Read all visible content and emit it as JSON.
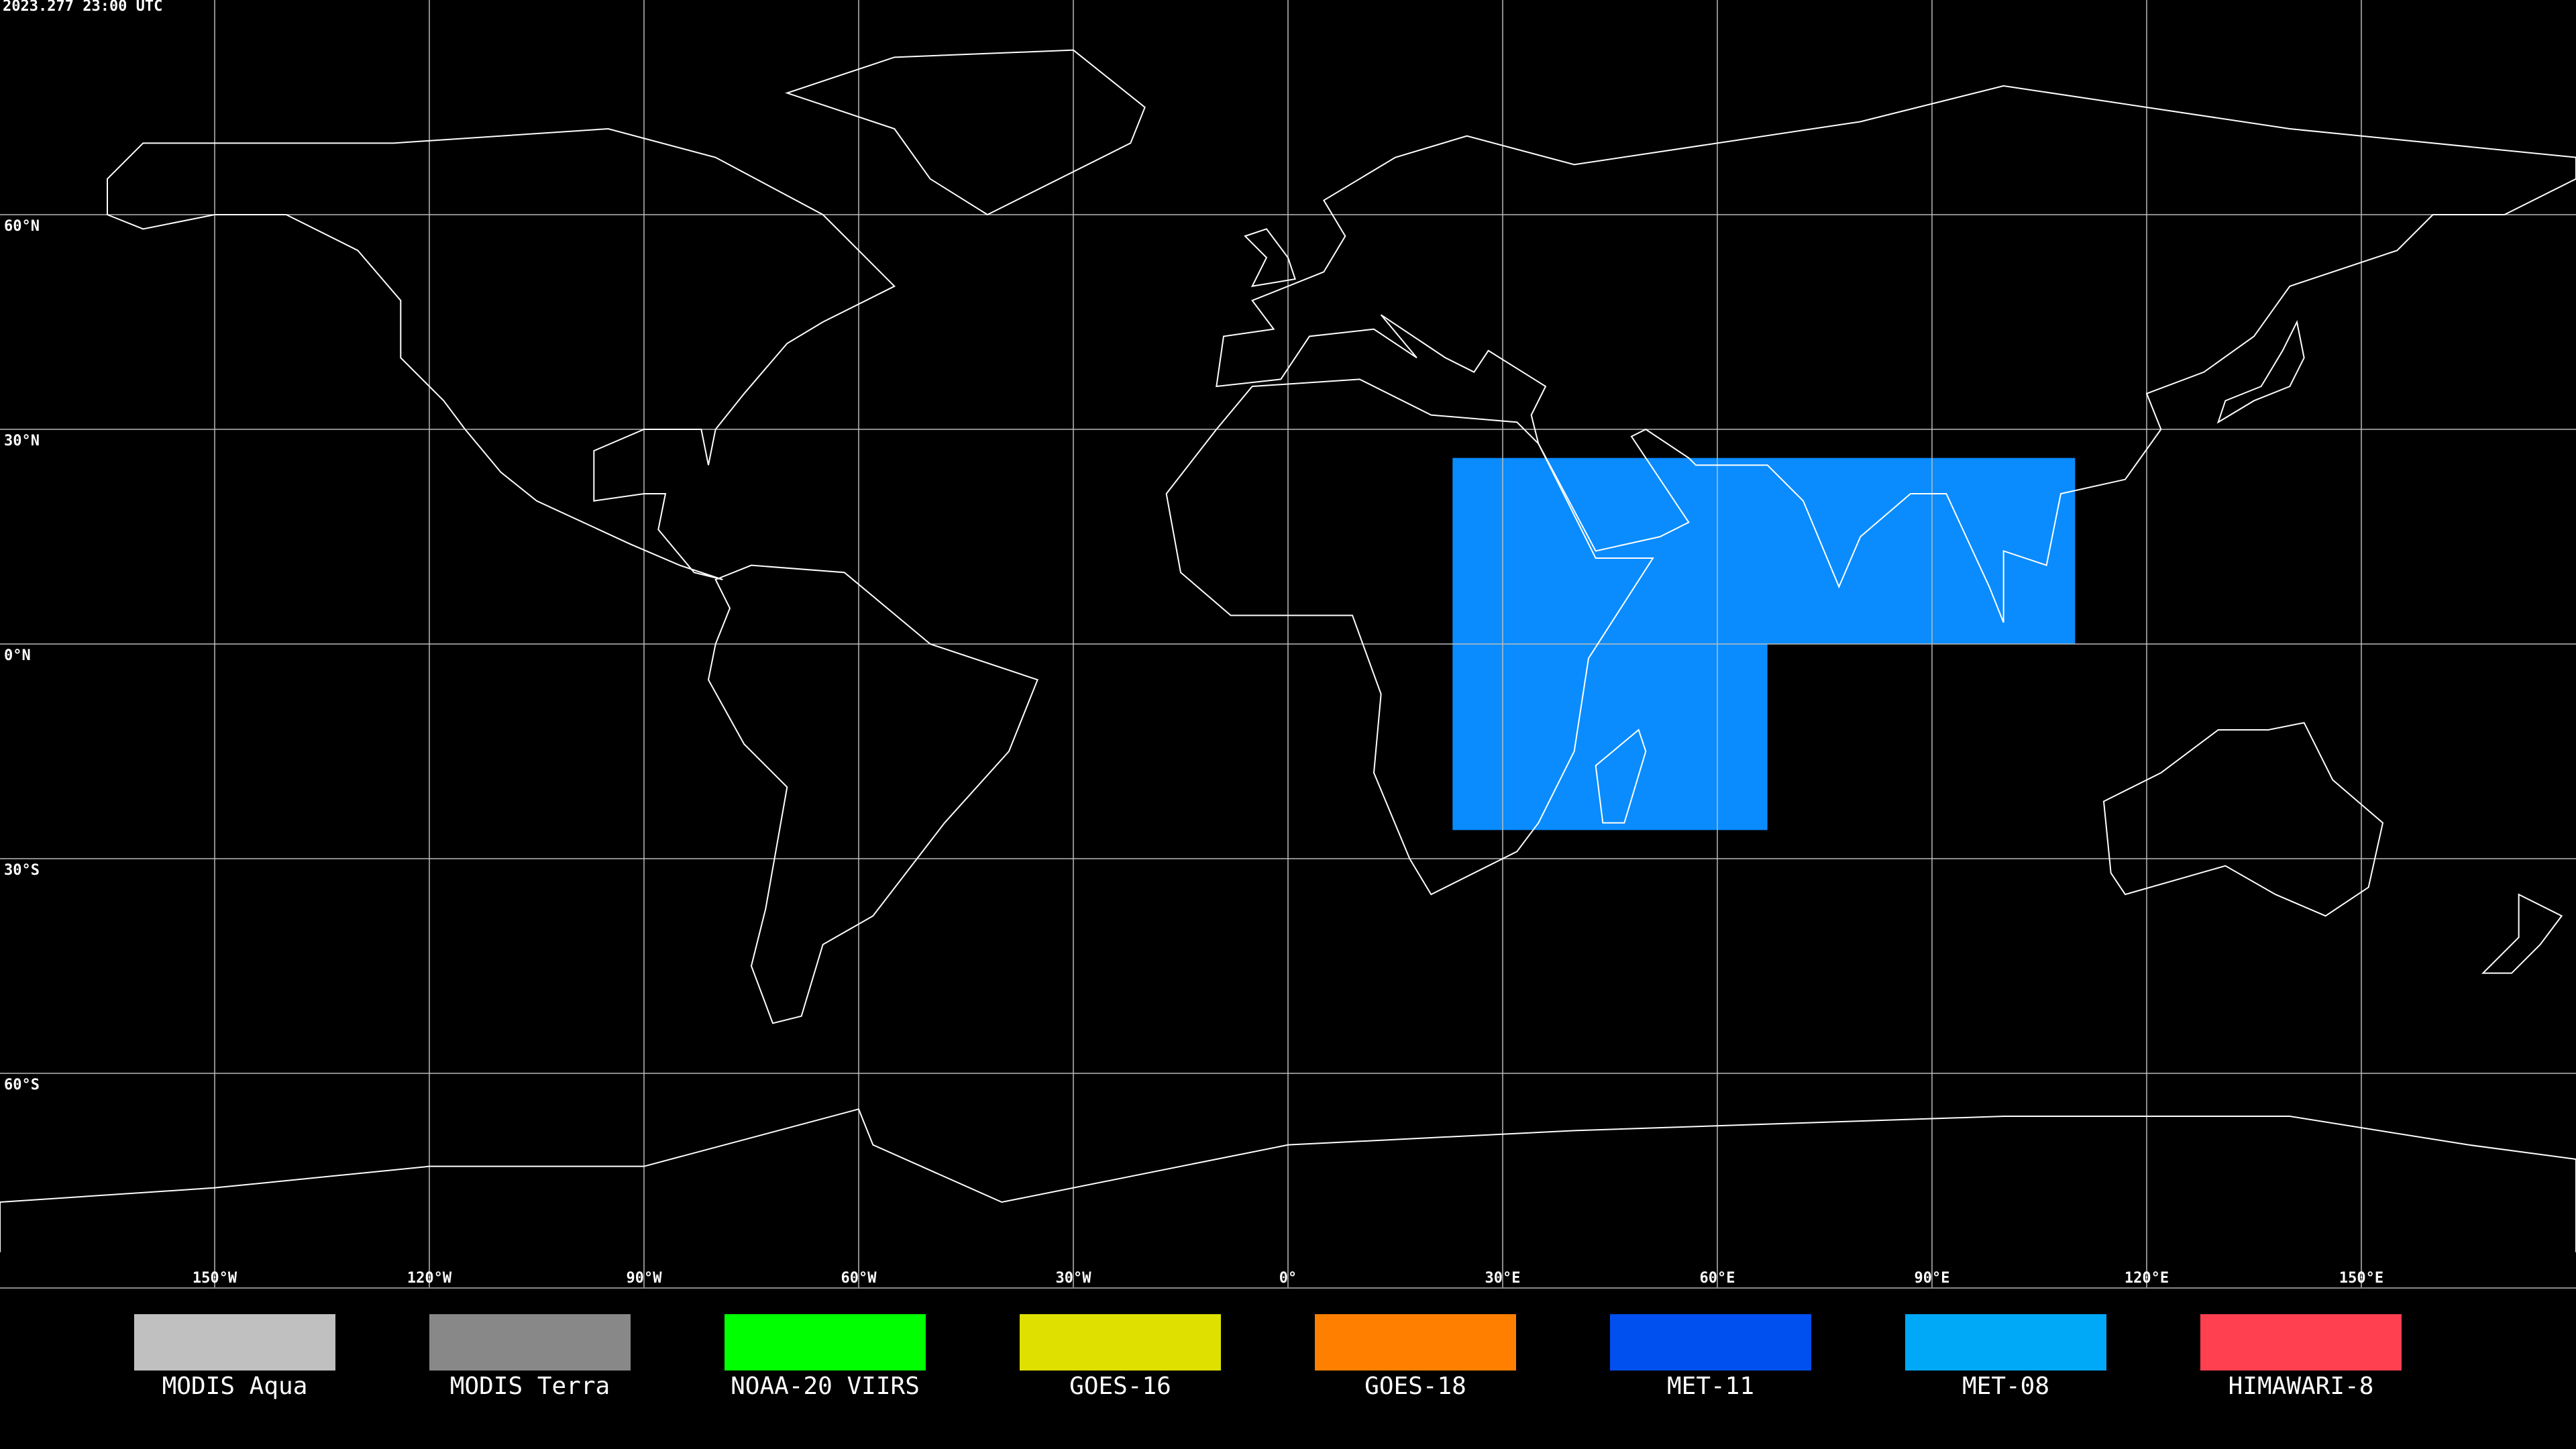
{
  "timestamp": "2023.277 23:00 UTC",
  "map": {
    "xlim": [
      -180,
      180
    ],
    "ylim": [
      -90,
      90
    ],
    "lat_lines": [
      {
        "value": 60,
        "label": "60°N"
      },
      {
        "value": 30,
        "label": "30°N"
      },
      {
        "value": 0,
        "label": "0°N"
      },
      {
        "value": -30,
        "label": "30°S"
      },
      {
        "value": -60,
        "label": "60°S"
      }
    ],
    "lon_lines": [
      {
        "value": -150,
        "label": "150°W"
      },
      {
        "value": -120,
        "label": "120°W"
      },
      {
        "value": -90,
        "label": "90°W"
      },
      {
        "value": -60,
        "label": "60°W"
      },
      {
        "value": -30,
        "label": "30°W"
      },
      {
        "value": 0,
        "label": "0°"
      },
      {
        "value": 30,
        "label": "30°E"
      },
      {
        "value": 60,
        "label": "60°E"
      },
      {
        "value": 90,
        "label": "90°E"
      },
      {
        "value": 120,
        "label": "120°E"
      },
      {
        "value": 150,
        "label": "150°E"
      }
    ],
    "coverage": {
      "color": "#0a8cff",
      "regions": [
        {
          "lon": [
            23,
            110
          ],
          "lat": [
            0,
            26
          ]
        },
        {
          "lon": [
            23,
            67
          ],
          "lat": [
            -26,
            0
          ]
        }
      ]
    }
  },
  "legend": [
    {
      "name": "MODIS Aqua",
      "color": "#c0c0c0"
    },
    {
      "name": "MODIS Terra",
      "color": "#888888"
    },
    {
      "name": "NOAA-20 VIIRS",
      "color": "#00ff00"
    },
    {
      "name": "GOES-16",
      "color": "#e0e000"
    },
    {
      "name": "GOES-18",
      "color": "#ff8000"
    },
    {
      "name": "MET-11",
      "color": "#0050f0"
    },
    {
      "name": "MET-08",
      "color": "#00a8f8"
    },
    {
      "name": "HIMAWARI-8",
      "color": "#ff4050"
    }
  ]
}
